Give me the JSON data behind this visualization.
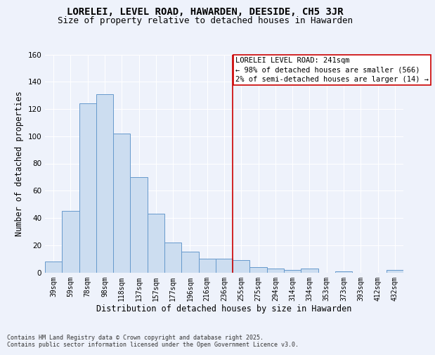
{
  "title": "LORELEI, LEVEL ROAD, HAWARDEN, DEESIDE, CH5 3JR",
  "subtitle": "Size of property relative to detached houses in Hawarden",
  "xlabel": "Distribution of detached houses by size in Hawarden",
  "ylabel": "Number of detached properties",
  "categories": [
    "39sqm",
    "59sqm",
    "78sqm",
    "98sqm",
    "118sqm",
    "137sqm",
    "157sqm",
    "177sqm",
    "196sqm",
    "216sqm",
    "236sqm",
    "255sqm",
    "275sqm",
    "294sqm",
    "314sqm",
    "334sqm",
    "353sqm",
    "373sqm",
    "393sqm",
    "412sqm",
    "432sqm"
  ],
  "values": [
    8,
    45,
    124,
    131,
    102,
    70,
    43,
    22,
    15,
    10,
    10,
    9,
    4,
    3,
    2,
    3,
    0,
    1,
    0,
    0,
    2
  ],
  "bar_color": "#ccddf0",
  "bar_edge_color": "#6699cc",
  "annotation_line_color": "#cc0000",
  "annotation_box_text": "LORELEI LEVEL ROAD: 241sqm\n← 98% of detached houses are smaller (566)\n2% of semi-detached houses are larger (14) →",
  "ylim": [
    0,
    160
  ],
  "yticks": [
    0,
    20,
    40,
    60,
    80,
    100,
    120,
    140,
    160
  ],
  "background_color": "#eef2fb",
  "grid_color": "#ffffff",
  "footer_text": "Contains HM Land Registry data © Crown copyright and database right 2025.\nContains public sector information licensed under the Open Government Licence v3.0.",
  "title_fontsize": 10,
  "subtitle_fontsize": 9,
  "axis_label_fontsize": 8.5,
  "tick_fontsize": 7,
  "annotation_fontsize": 7.5,
  "footer_fontsize": 6
}
